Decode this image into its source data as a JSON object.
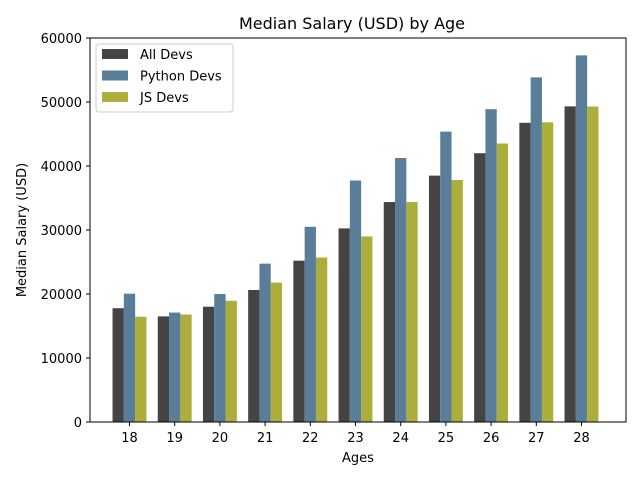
{
  "chart_data": {
    "type": "bar",
    "title": "Median Salary (USD) by Age",
    "xlabel": "Ages",
    "ylabel": "Median Salary (USD)",
    "categories": [
      "18",
      "19",
      "20",
      "21",
      "22",
      "23",
      "24",
      "25",
      "26",
      "27",
      "28"
    ],
    "series": [
      {
        "name": "All Devs",
        "color": "#444444",
        "values": [
          17784,
          16500,
          18012,
          20628,
          25206,
          30252,
          34368,
          38496,
          42000,
          46752,
          49320
        ]
      },
      {
        "name": "Python Devs",
        "color": "#5a7d9a",
        "values": [
          20046,
          17100,
          20000,
          24744,
          30500,
          37732,
          41247,
          45372,
          48876,
          53850,
          57287
        ]
      },
      {
        "name": "JS Devs",
        "color": "#adad3b",
        "values": [
          16446,
          16791,
          18942,
          21780,
          25704,
          29000,
          34372,
          37810,
          43515,
          46823,
          49293
        ]
      }
    ],
    "ylim": [
      0,
      60000
    ],
    "yticks": [
      "0",
      "10000",
      "20000",
      "30000",
      "40000",
      "50000",
      "60000"
    ],
    "grid": false,
    "legend_position": "top-left"
  }
}
